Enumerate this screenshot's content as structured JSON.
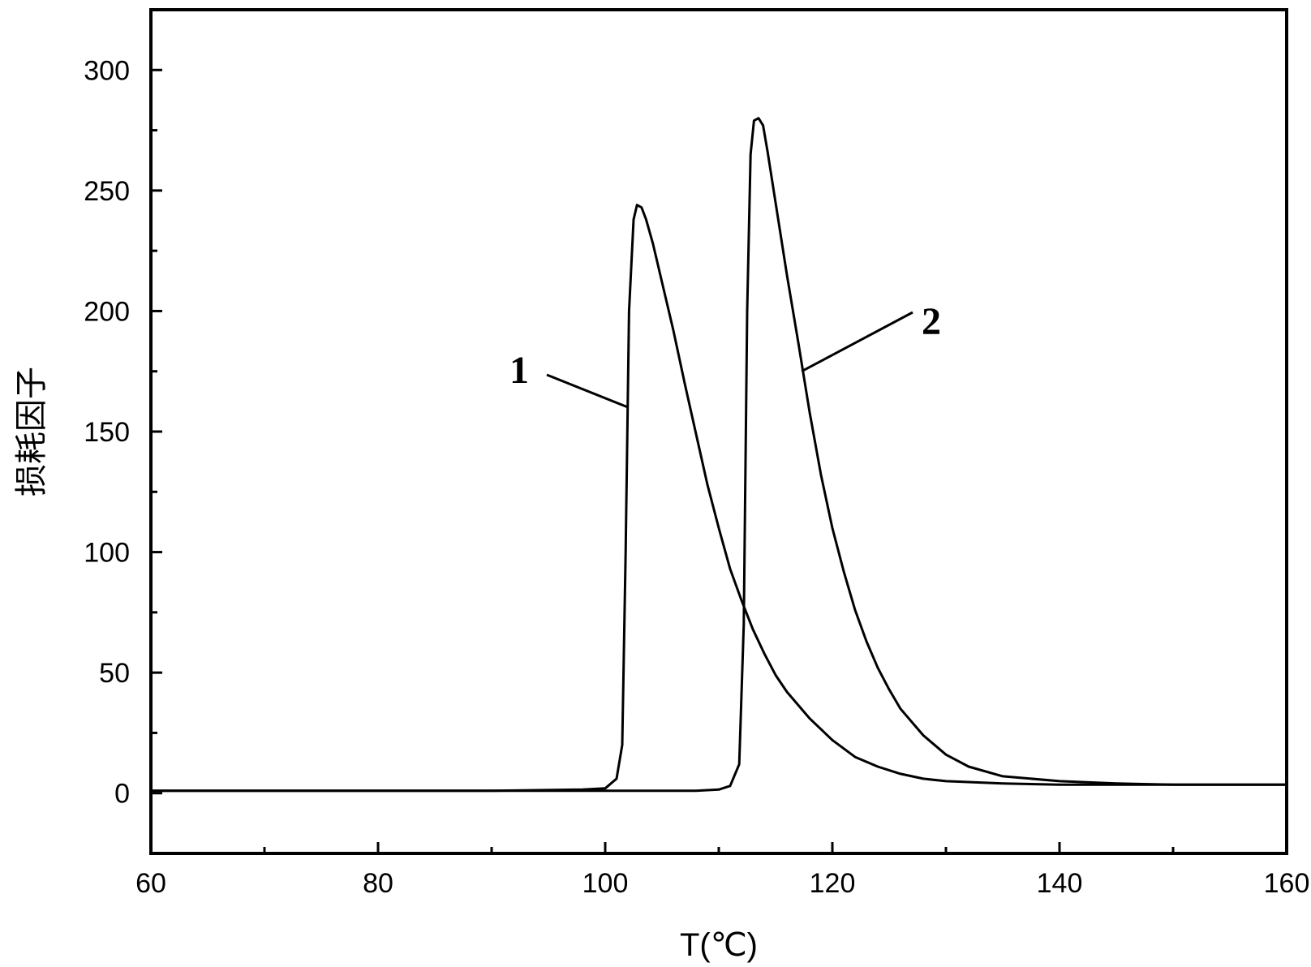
{
  "chart_data": {
    "type": "line",
    "title": "",
    "xlabel": "T(℃)",
    "ylabel": "损耗因子",
    "xlim": [
      60,
      160
    ],
    "ylim": [
      -25,
      325
    ],
    "x_ticks": [
      60,
      80,
      100,
      120,
      140,
      160
    ],
    "x_tick_labels": [
      "60",
      "80",
      "100",
      "120",
      "140",
      "160"
    ],
    "y_ticks": [
      0,
      50,
      100,
      150,
      200,
      250,
      300
    ],
    "y_tick_labels": [
      "0",
      "50",
      "100",
      "150",
      "200",
      "250",
      "300"
    ],
    "grid": false,
    "legend": "none",
    "series": [
      {
        "label": "1",
        "x": [
          60,
          90,
          98,
          100,
          101,
          101.5,
          101.8,
          102.1,
          102.5,
          102.8,
          103.2,
          103.6,
          104.2,
          105,
          106,
          107,
          108,
          109,
          110,
          111,
          112,
          113,
          114,
          115,
          116,
          118,
          120,
          122,
          124,
          126,
          128,
          130,
          135,
          140,
          145,
          150,
          160
        ],
        "y": [
          1,
          1,
          1.5,
          2,
          6,
          20,
          100,
          200,
          238,
          244,
          243,
          238,
          228,
          212,
          192,
          170,
          149,
          128,
          110,
          93,
          80,
          68,
          58,
          49,
          42,
          31,
          22,
          15,
          11,
          8,
          6,
          5,
          4,
          3.5,
          3.5,
          3.5,
          3.5
        ]
      },
      {
        "label": "2",
        "x": [
          60,
          100,
          108,
          110,
          111,
          111.8,
          112.2,
          112.5,
          112.8,
          113.1,
          113.5,
          113.9,
          114.3,
          115,
          116,
          117,
          118,
          119,
          120,
          121,
          122,
          123,
          124,
          125,
          126,
          128,
          130,
          132,
          135,
          140,
          145,
          150,
          160
        ],
        "y": [
          1,
          1,
          1,
          1.5,
          3,
          12,
          70,
          200,
          265,
          279,
          280,
          277,
          266,
          245,
          215,
          187,
          158,
          132,
          110,
          92,
          76,
          63,
          52,
          43,
          35,
          24,
          16,
          11,
          7,
          5,
          4,
          3.5,
          3.5
        ]
      }
    ],
    "annotations": [
      {
        "text": "1",
        "target_series": 0
      },
      {
        "text": "2",
        "target_series": 1
      }
    ]
  }
}
